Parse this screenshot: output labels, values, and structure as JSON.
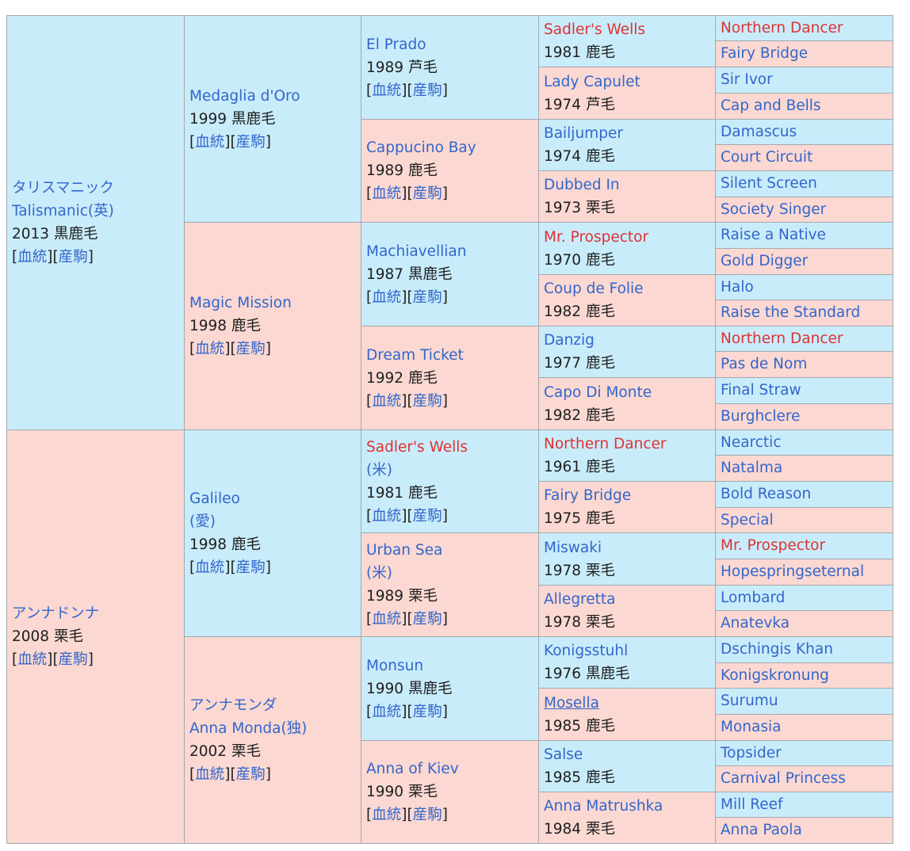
{
  "link_pedigree": "血統",
  "link_progeny": "産駒",
  "columns": [
    [
      {
        "name": "タリスマニック",
        "name2": "Talismanic(英)",
        "desc": "2013 黒鹿毛",
        "sex": "m",
        "links": true
      },
      {
        "name": "アンナドンナ",
        "desc": "2008 栗毛",
        "sex": "f",
        "links": true
      }
    ],
    [
      {
        "name": "Medaglia d'Oro",
        "desc": "1999 黒鹿毛",
        "sex": "m",
        "links": true
      },
      {
        "name": "Magic Mission",
        "desc": "1998 鹿毛",
        "sex": "f",
        "links": true
      },
      {
        "name": "Galileo",
        "country": "(愛)",
        "desc": "1998 鹿毛",
        "sex": "m",
        "links": true
      },
      {
        "name": "アンナモンダ",
        "name2": "Anna Monda(独)",
        "desc": "2002 栗毛",
        "sex": "f",
        "links": true
      }
    ],
    [
      {
        "name": "El Prado",
        "desc": "1989 芦毛",
        "sex": "m",
        "links": true
      },
      {
        "name": "Cappucino Bay",
        "desc": "1989 鹿毛",
        "sex": "f",
        "links": true
      },
      {
        "name": "Machiavellian",
        "desc": "1987 黒鹿毛",
        "sex": "m",
        "links": true
      },
      {
        "name": "Dream Ticket",
        "desc": "1992 鹿毛",
        "sex": "f",
        "links": true
      },
      {
        "name": "Sadler's Wells",
        "country": "(米)",
        "desc": "1981 鹿毛",
        "sex": "m",
        "links": true,
        "red": true
      },
      {
        "name": "Urban Sea",
        "country": "(米)",
        "desc": "1989 栗毛",
        "sex": "f",
        "links": true
      },
      {
        "name": "Monsun",
        "desc": "1990 黒鹿毛",
        "sex": "m",
        "links": true
      },
      {
        "name": "Anna of Kiev",
        "desc": "1990 栗毛",
        "sex": "f",
        "links": true
      }
    ],
    [
      {
        "name": "Sadler's Wells",
        "desc": "1981 鹿毛",
        "sex": "m",
        "red": true
      },
      {
        "name": "Lady Capulet",
        "desc": "1974 芦毛",
        "sex": "f"
      },
      {
        "name": "Bailjumper",
        "desc": "1974 鹿毛",
        "sex": "m"
      },
      {
        "name": "Dubbed In",
        "desc": "1973 栗毛",
        "sex": "f"
      },
      {
        "name": "Mr. Prospector",
        "desc": "1970 鹿毛",
        "sex": "m",
        "red": true
      },
      {
        "name": "Coup de Folie",
        "desc": "1982 鹿毛",
        "sex": "f"
      },
      {
        "name": "Danzig",
        "desc": "1977 鹿毛",
        "sex": "m"
      },
      {
        "name": "Capo Di Monte",
        "desc": "1982 鹿毛",
        "sex": "f"
      },
      {
        "name": "Northern Dancer",
        "desc": "1961 鹿毛",
        "sex": "m",
        "red": true
      },
      {
        "name": "Fairy Bridge",
        "desc": "1975 鹿毛",
        "sex": "f"
      },
      {
        "name": "Miswaki",
        "desc": "1978 栗毛",
        "sex": "m"
      },
      {
        "name": "Allegretta",
        "desc": "1978 栗毛",
        "sex": "f"
      },
      {
        "name": "Konigsstuhl",
        "desc": "1976 黒鹿毛",
        "sex": "m"
      },
      {
        "name": "Mosella",
        "desc": "1985 鹿毛",
        "sex": "f",
        "underline": true
      },
      {
        "name": "Salse",
        "desc": "1985 鹿毛",
        "sex": "m"
      },
      {
        "name": "Anna Matrushka",
        "desc": "1984 栗毛",
        "sex": "f"
      }
    ],
    [
      {
        "name": "Northern Dancer",
        "sex": "m",
        "red": true
      },
      {
        "name": "Fairy Bridge",
        "sex": "f"
      },
      {
        "name": "Sir Ivor",
        "sex": "m"
      },
      {
        "name": "Cap and Bells",
        "sex": "f"
      },
      {
        "name": "Damascus",
        "sex": "m"
      },
      {
        "name": "Court Circuit",
        "sex": "f"
      },
      {
        "name": "Silent Screen",
        "sex": "m"
      },
      {
        "name": "Society Singer",
        "sex": "f"
      },
      {
        "name": "Raise a Native",
        "sex": "m"
      },
      {
        "name": "Gold Digger",
        "sex": "f"
      },
      {
        "name": "Halo",
        "sex": "m"
      },
      {
        "name": "Raise the Standard",
        "sex": "f"
      },
      {
        "name": "Northern Dancer",
        "sex": "m",
        "red": true
      },
      {
        "name": "Pas de Nom",
        "sex": "f"
      },
      {
        "name": "Final Straw",
        "sex": "m"
      },
      {
        "name": "Burghclere",
        "sex": "f"
      },
      {
        "name": "Nearctic",
        "sex": "m"
      },
      {
        "name": "Natalma",
        "sex": "f"
      },
      {
        "name": "Bold Reason",
        "sex": "m"
      },
      {
        "name": "Special",
        "sex": "f"
      },
      {
        "name": "Mr. Prospector",
        "sex": "m",
        "red": true
      },
      {
        "name": "Hopespringseternal",
        "sex": "f"
      },
      {
        "name": "Lombard",
        "sex": "m"
      },
      {
        "name": "Anatevka",
        "sex": "f"
      },
      {
        "name": "Dschingis Khan",
        "sex": "m"
      },
      {
        "name": "Konigskronung",
        "sex": "f"
      },
      {
        "name": "Surumu",
        "sex": "m"
      },
      {
        "name": "Monasia",
        "sex": "f"
      },
      {
        "name": "Topsider",
        "sex": "m"
      },
      {
        "name": "Carnival Princess",
        "sex": "f"
      },
      {
        "name": "Mill Reef",
        "sex": "m"
      },
      {
        "name": "Anna Paola",
        "sex": "f"
      }
    ]
  ]
}
